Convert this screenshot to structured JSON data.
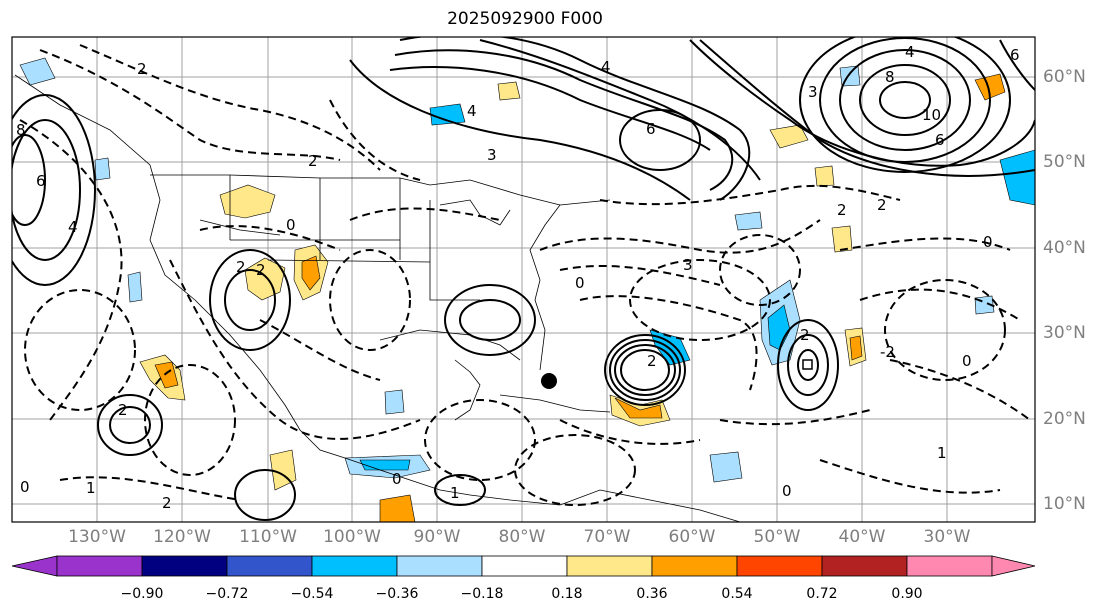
{
  "title": "2025092900 F000",
  "lat_labels": [
    "60°N",
    "50°N",
    "40°N",
    "30°N",
    "20°N",
    "10°N"
  ],
  "lon_labels": [
    "130°W",
    "120°W",
    "110°W",
    "100°W",
    "90°W",
    "80°W",
    "70°W",
    "60°W",
    "50°W",
    "40°W",
    "30°W"
  ],
  "colorbar": {
    "ticks": [
      "−0.90",
      "−0.72",
      "−0.54",
      "−0.36",
      "−0.18",
      "0.18",
      "0.36",
      "0.54",
      "0.72",
      "0.90"
    ],
    "colors": [
      "#9933cc",
      "#000080",
      "#3355cc",
      "#00bfff",
      "#aadfff",
      "#ffffff",
      "#ffe88a",
      "#ffa000",
      "#ff4500",
      "#b22222",
      "#ff88b0"
    ]
  },
  "contour_labels": [
    "6",
    "2",
    "8",
    "4",
    "0",
    "3",
    "10",
    "1",
    "-2"
  ],
  "colors": {
    "positive_fill": "#ffe88a",
    "positive_fill_strong": "#ffa000",
    "negative_fill": "#aadfff",
    "negative_fill_strong": "#00bfff",
    "grid": "#a0a0a0",
    "axis_text": "#7f7f7f"
  }
}
